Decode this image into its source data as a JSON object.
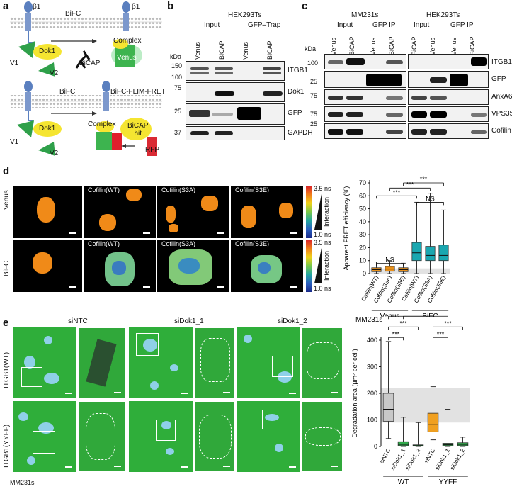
{
  "panels": {
    "a": "a",
    "b": "b",
    "c": "c",
    "d": "d",
    "e": "e"
  },
  "panel_a": {
    "top": {
      "b1_left": "β1",
      "b1_right": "β1",
      "bifc": "BiFC",
      "dok1": "Dok1",
      "v1": "V1",
      "v2": "V2",
      "bicap": "BiCAP",
      "complex": "Complex",
      "venus": "Venus"
    },
    "bottom": {
      "bifc": "BiFC",
      "flim": "BiFC-FLIM-FRET",
      "dok1": "Dok1",
      "v1": "V1",
      "v2": "V2",
      "complex": "Complex",
      "bicap_hit": "BiCAP\nhit",
      "rfp": "RFP"
    }
  },
  "panel_b": {
    "cell_line": "HEK293Ts",
    "input": "Input",
    "gfp_trap": "GFP–Trap",
    "lanes": [
      "Venus",
      "BiCAP",
      "Venus",
      "BiCAP"
    ],
    "kda": "kDa",
    "markers": [
      "150",
      "100",
      "75",
      "25",
      "37"
    ],
    "rows": [
      "ITGB1",
      "Dok1",
      "GFP",
      "GAPDH"
    ]
  },
  "panel_c": {
    "left_title": "MM231s",
    "right_title": "HEK293Ts",
    "input": "Input",
    "gfp_ip": "GFP IP",
    "lanes_left": [
      "Venus",
      "BiCAP",
      "Venus",
      "BiCAP"
    ],
    "lanes_right": [
      "BiCAP",
      "Venus",
      "Venus",
      "BiCAP"
    ],
    "kda": "kDa",
    "markers": [
      "100",
      "25",
      "75",
      "75",
      "25"
    ],
    "rows": [
      "ITGB1",
      "GFP",
      "AnxA6",
      "VPS35",
      "Cofilin"
    ]
  },
  "panel_d": {
    "row_labels": [
      "Venus",
      "BiFC"
    ],
    "col_labels": [
      "Cofilin(WT)",
      "Cofilin(S3A)",
      "Cofilin(S3E)"
    ],
    "scale_max": "3.5 ns",
    "scale_min": "1.0 ns",
    "scale_label": "Interaction"
  },
  "panel_e": {
    "col_labels": [
      "siNTC",
      "siDok1_1",
      "siDok1_2"
    ],
    "row_labels": [
      "ITGB1(WT)",
      "ITGB1(YYFF)"
    ],
    "cell_line": "MM231s"
  },
  "chart_data": [
    {
      "type": "box",
      "ylabel": "Apparent FRET efficiency (%)",
      "ylim": [
        0,
        70
      ],
      "yticks": [
        0,
        10,
        20,
        30,
        40,
        50,
        60,
        70
      ],
      "categories": [
        "Cofilin(WT)",
        "Cofilin(S3A)",
        "Cofilin(S3E)",
        "Cofilin(WT)",
        "Cofilin(S3A)",
        "Cofilin(S3E)"
      ],
      "groups": [
        {
          "name": "Venus",
          "span": [
            0,
            2
          ]
        },
        {
          "name": "BiFC",
          "span": [
            3,
            5
          ]
        }
      ],
      "colors": [
        "#e8901a",
        "#e8901a",
        "#e8901a",
        "#1aa7b0",
        "#1aa7b0",
        "#1aa7b0"
      ],
      "boxes": [
        {
          "min": 0,
          "q1": 1.5,
          "median": 3,
          "q3": 4.5,
          "max": 9
        },
        {
          "min": 0,
          "q1": 1.8,
          "median": 3.5,
          "q3": 5.5,
          "max": 10
        },
        {
          "min": 0,
          "q1": 1.5,
          "median": 3,
          "q3": 4.5,
          "max": 8
        },
        {
          "min": 0,
          "q1": 10,
          "median": 16,
          "q3": 24,
          "max": 55
        },
        {
          "min": 0,
          "q1": 10,
          "median": 14,
          "q3": 21,
          "max": 62
        },
        {
          "min": 0,
          "q1": 10,
          "median": 14,
          "q3": 22,
          "max": 49
        }
      ],
      "shaded_band": [
        0,
        4
      ],
      "annotations": [
        "NS",
        "***",
        "***",
        "NS",
        "***"
      ]
    },
    {
      "type": "box",
      "title": "MM231s",
      "ylabel": "Degradation area (µm² per cell)",
      "ylim": [
        0,
        400
      ],
      "yticks": [
        0,
        100,
        200,
        300,
        400
      ],
      "categories": [
        "siNTC",
        "siDok1_1",
        "siDok1_2",
        "siNTC",
        "siDok1_1",
        "siDok1_2"
      ],
      "groups": [
        {
          "name": "WT",
          "span": [
            0,
            2
          ]
        },
        {
          "name": "YYFF",
          "span": [
            3,
            5
          ]
        }
      ],
      "colors": [
        "#c8c8c8",
        "#2fa84a",
        "#2fa84a",
        "#f0a020",
        "#2fa84a",
        "#2fa84a"
      ],
      "boxes": [
        {
          "min": 30,
          "q1": 95,
          "median": 140,
          "q3": 200,
          "max": 395
        },
        {
          "min": 0,
          "q1": 3,
          "median": 8,
          "q3": 18,
          "max": 110
        },
        {
          "min": 0,
          "q1": 1,
          "median": 3,
          "q3": 6,
          "max": 90
        },
        {
          "min": 25,
          "q1": 55,
          "median": 82,
          "q3": 125,
          "max": 225
        },
        {
          "min": 0,
          "q1": 3,
          "median": 7,
          "q3": 12,
          "max": 140
        },
        {
          "min": 0,
          "q1": 3,
          "median": 8,
          "q3": 14,
          "max": 35
        }
      ],
      "shaded_band": [
        90,
        220
      ],
      "annotations": [
        "***",
        "***",
        "***",
        "***",
        "***",
        "***"
      ]
    }
  ]
}
